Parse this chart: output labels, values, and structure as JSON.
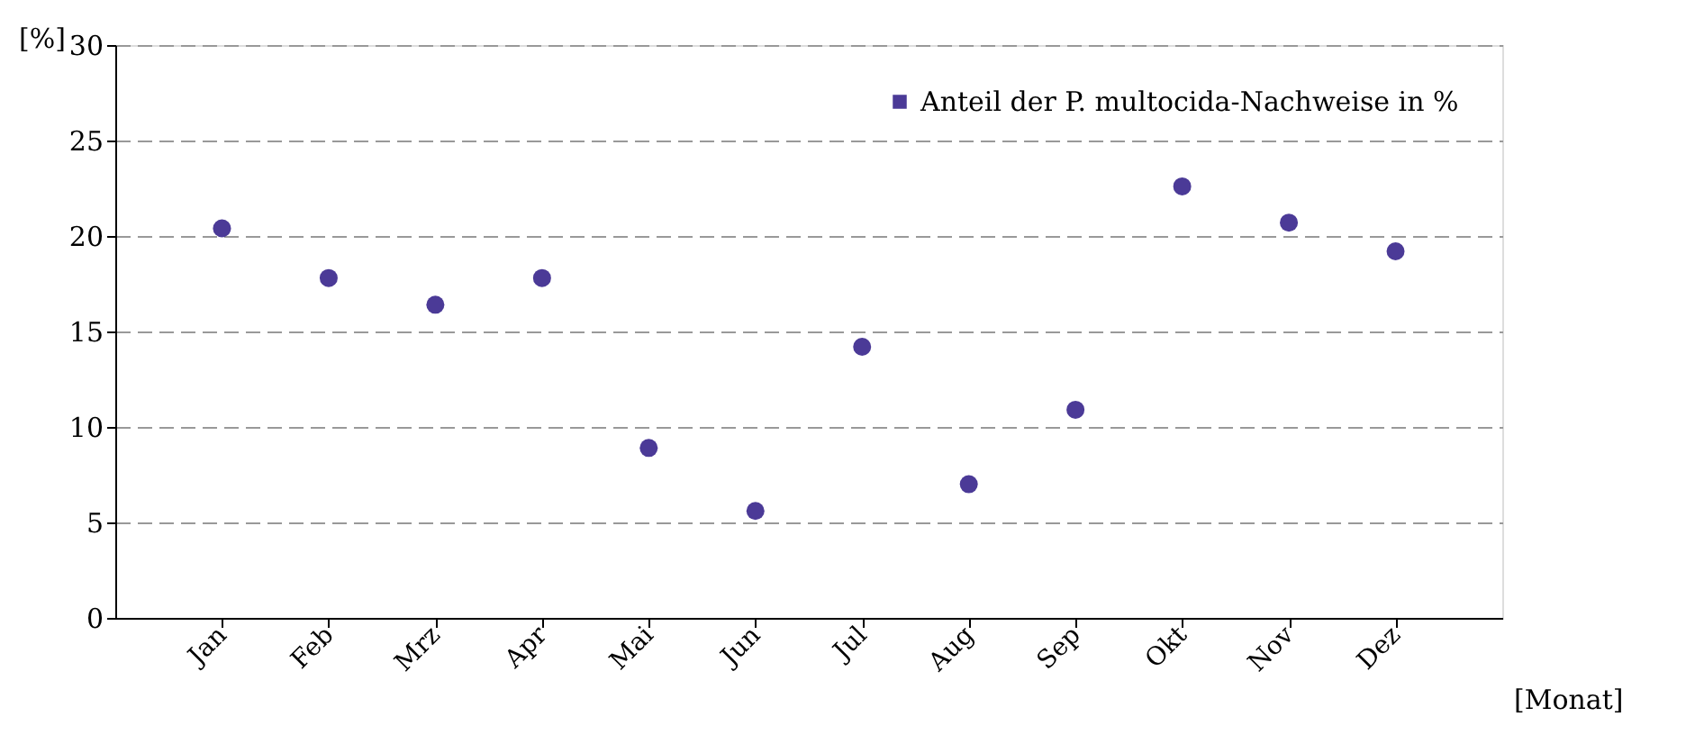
{
  "chart_data": {
    "type": "scatter",
    "ylabel": "[%]",
    "xlabel": "[Monat]",
    "categories": [
      "Jan",
      "Feb",
      "Mrz",
      "Apr",
      "Mai",
      "Jun",
      "Jul",
      "Aug",
      "Sep",
      "Okt",
      "Nov",
      "Dez"
    ],
    "series": [
      {
        "name": "Anteil der P. multocida-Nachweise in %",
        "color": "#4b3a97",
        "values": [
          20.4,
          17.8,
          16.4,
          17.8,
          8.9,
          5.6,
          14.2,
          7.0,
          10.9,
          22.6,
          20.7,
          19.2
        ]
      }
    ],
    "ylim": [
      0,
      30
    ],
    "yticks": [
      0,
      5,
      10,
      15,
      20,
      25,
      30
    ],
    "grid": "y",
    "legend": "top right",
    "marker": "circle"
  }
}
